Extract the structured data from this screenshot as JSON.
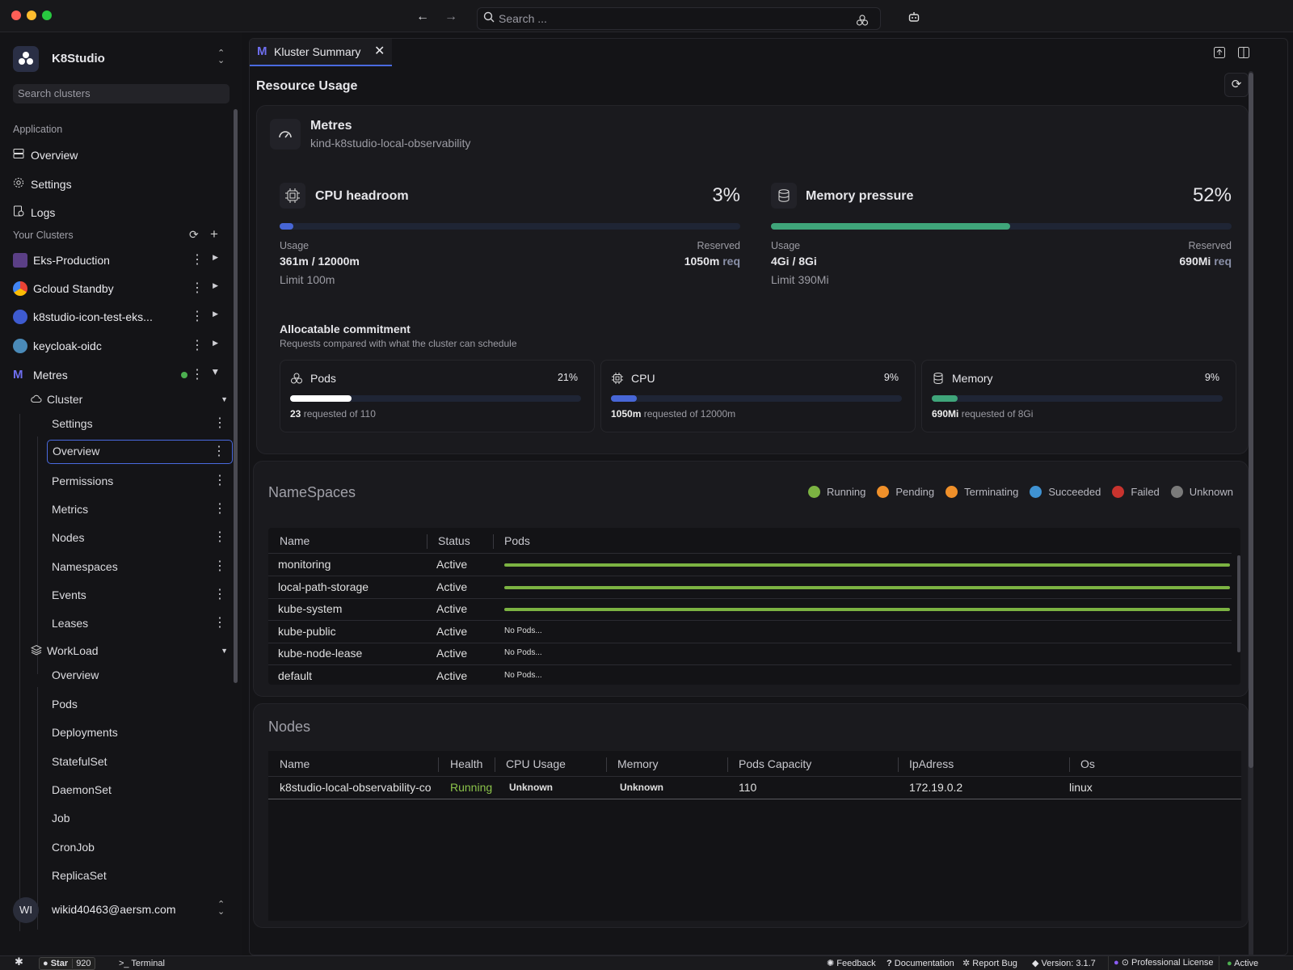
{
  "titlebar": {
    "search_placeholder": "Search ..."
  },
  "sidebar": {
    "app_name": "K8Studio",
    "search_placeholder": "Search clusters",
    "application_header": "Application",
    "app_items": [
      "Overview",
      "Settings",
      "Logs"
    ],
    "clusters_header": "Your Clusters",
    "clusters": [
      "Eks-Production",
      "Gcloud Standby",
      "k8studio-icon-test-eks...",
      "keycloak-oidc",
      "Metres"
    ],
    "cluster_group": {
      "label": "Cluster",
      "items": [
        "Settings",
        "Overview",
        "Permissions",
        "Metrics",
        "Nodes",
        "Namespaces",
        "Events",
        "Leases"
      ]
    },
    "workload_group": {
      "label": "WorkLoad",
      "items": [
        "Overview",
        "Pods",
        "Deployments",
        "StatefulSet",
        "DaemonSet",
        "Job",
        "CronJob",
        "ReplicaSet"
      ]
    },
    "user": {
      "initials": "WI",
      "email": "wikid40463@aersm.com"
    }
  },
  "tab": {
    "label": "Kluster Summary"
  },
  "resource": {
    "title": "Resource Usage",
    "cluster_name": "Metres",
    "cluster_context": "kind-k8studio-local-observability",
    "cpu": {
      "title": "CPU headroom",
      "percent": "3%",
      "fill": 0.03,
      "usage_label": "Usage",
      "usage": "361m / 12000m",
      "reserved_label": "Reserved",
      "reserved_value": "1050m",
      "reserved_unit": "req",
      "limit": "Limit 100m"
    },
    "memory": {
      "title": "Memory pressure",
      "percent": "52%",
      "fill": 0.52,
      "usage_label": "Usage",
      "usage": "4Gi / 8Gi",
      "reserved_label": "Reserved",
      "reserved_value": "690Mi",
      "reserved_unit": "req",
      "limit": "Limit 390Mi"
    },
    "commit_title": "Allocatable commitment",
    "commit_subtitle": "Requests compared with what the cluster can schedule",
    "commit": [
      {
        "name": "Pods",
        "percent": "21%",
        "fill": 0.21,
        "value": "23",
        "text": "requested of 110",
        "color": "#ffffff"
      },
      {
        "name": "CPU",
        "percent": "9%",
        "fill": 0.09,
        "value": "1050m",
        "text": "requested of 12000m",
        "color": "#4766d6"
      },
      {
        "name": "Memory",
        "percent": "9%",
        "fill": 0.09,
        "value": "690Mi",
        "text": "requested of 8Gi",
        "color": "#3fa57a"
      }
    ]
  },
  "namespaces": {
    "title": "NameSpaces",
    "legend": [
      {
        "label": "Running",
        "color": "#7cb342"
      },
      {
        "label": "Pending",
        "color": "#f0902a"
      },
      {
        "label": "Terminating",
        "color": "#f0902a"
      },
      {
        "label": "Succeeded",
        "color": "#3f92d2"
      },
      {
        "label": "Failed",
        "color": "#c8332e"
      },
      {
        "label": "Unknown",
        "color": "#7a7a7a"
      }
    ],
    "columns": [
      "Name",
      "Status",
      "Pods"
    ],
    "rows": [
      {
        "name": "monitoring",
        "status": "Active",
        "pods": "bar"
      },
      {
        "name": "local-path-storage",
        "status": "Active",
        "pods": "bar"
      },
      {
        "name": "kube-system",
        "status": "Active",
        "pods": "bar"
      },
      {
        "name": "kube-public",
        "status": "Active",
        "pods": "No Pods..."
      },
      {
        "name": "kube-node-lease",
        "status": "Active",
        "pods": "No Pods..."
      },
      {
        "name": "default",
        "status": "Active",
        "pods": "No Pods..."
      }
    ]
  },
  "nodes": {
    "title": "Nodes",
    "columns": [
      "Name",
      "Health",
      "CPU Usage",
      "Memory",
      "Pods Capacity",
      "IpAdress",
      "Os"
    ],
    "rows": [
      {
        "name": "k8studio-local-observability-co",
        "health": "Running",
        "cpu": "Unknown",
        "memory": "Unknown",
        "pods": "110",
        "ip": "172.19.0.2",
        "os": "linux"
      }
    ]
  },
  "statusbar": {
    "star": "Star",
    "star_count": "920",
    "terminal": "Terminal",
    "feedback": "Feedback",
    "documentation": "Documentation",
    "report_bug": "Report Bug",
    "version": "Version: 3.1.7",
    "license": "Professional License",
    "active": "Active"
  }
}
